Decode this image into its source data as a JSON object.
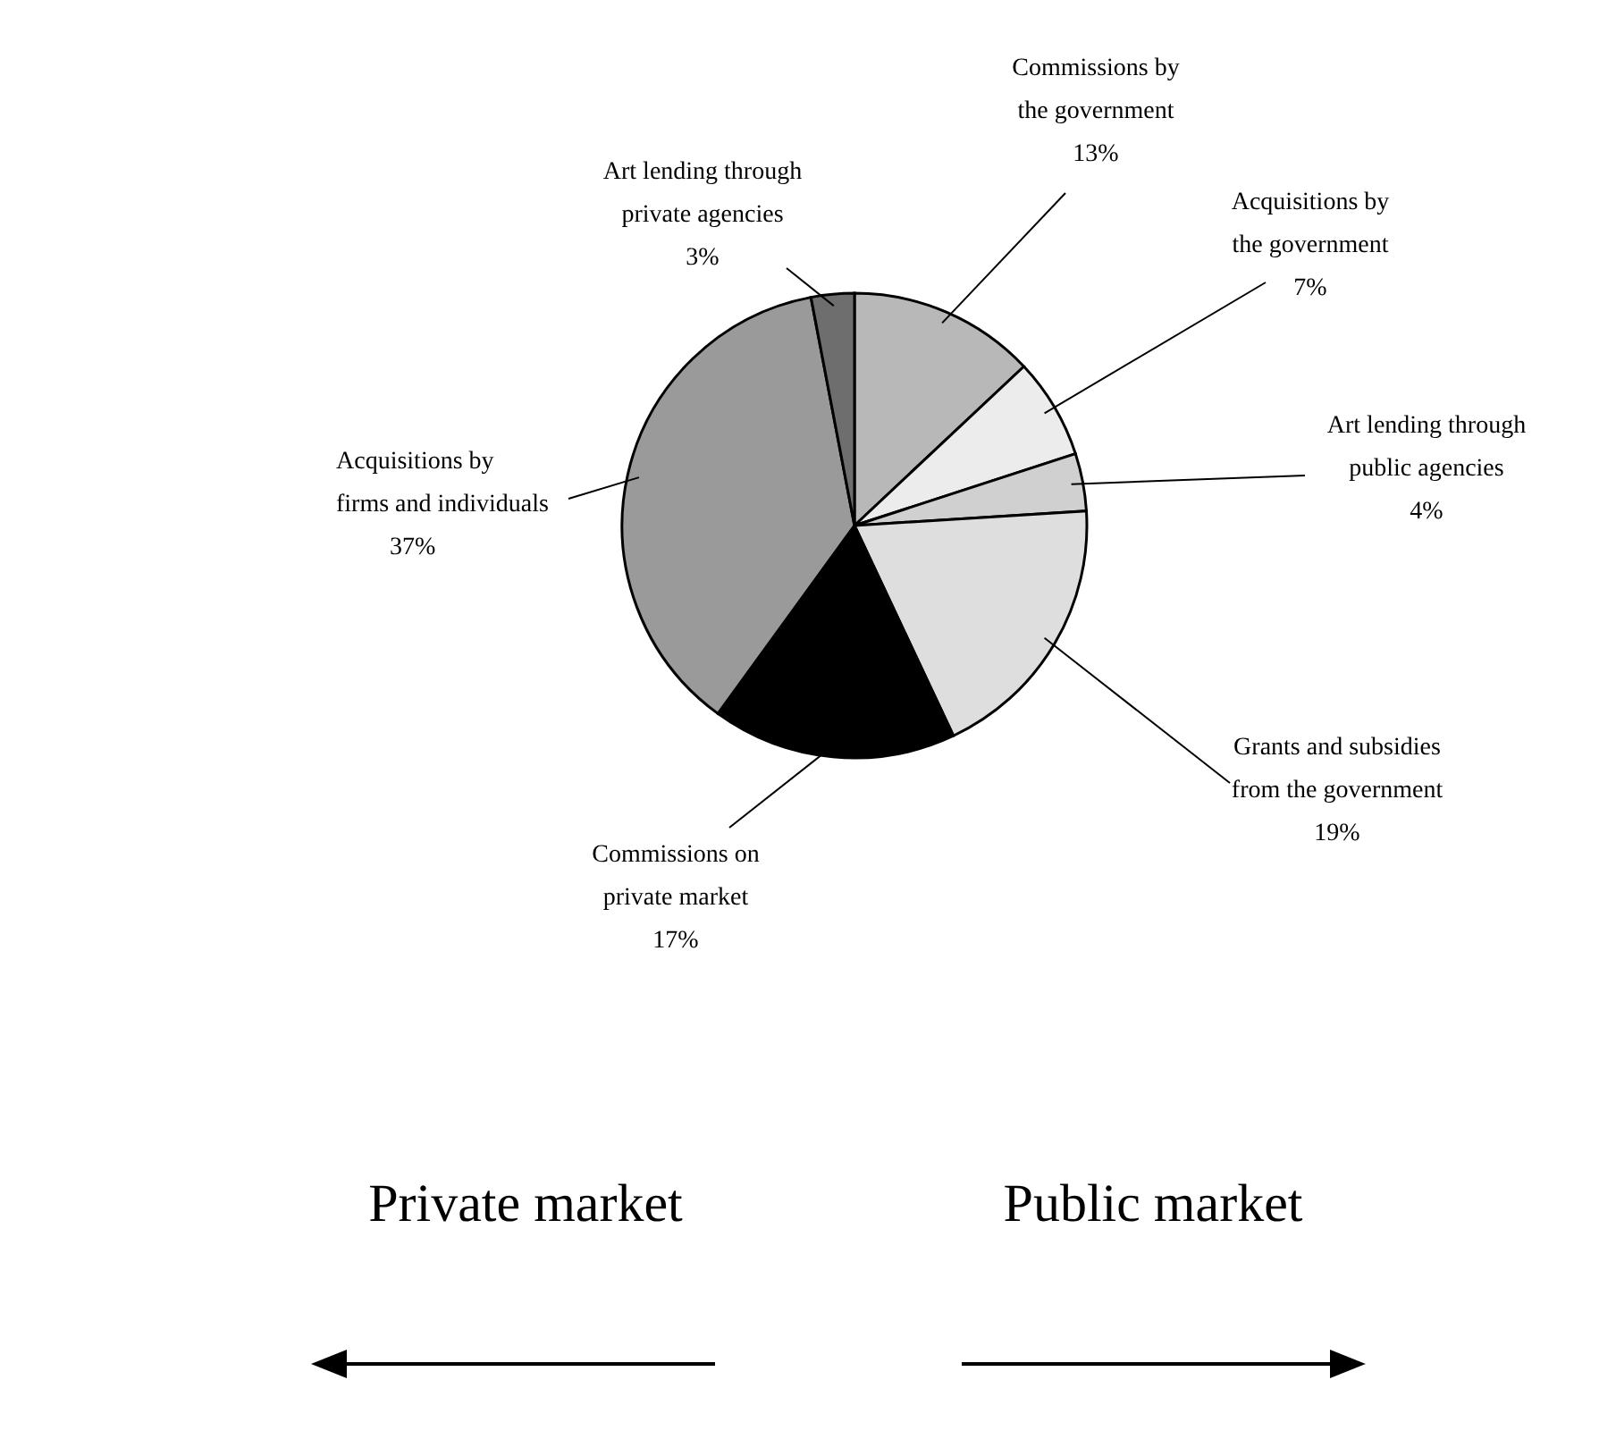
{
  "chart_data": {
    "type": "pie",
    "categories": [
      "Commissions by\nthe government",
      "Acquisitions by\nthe government",
      "Art lending through\npublic agencies",
      "Grants and subsidies\nfrom the government",
      "Commissions on\nprivate market",
      "Acquisitions by\nfirms and individuals",
      "Art lending through\nprivate agencies"
    ],
    "values": [
      13,
      7,
      4,
      19,
      17,
      37,
      3
    ],
    "colors": [
      "#b8b8b8",
      "#ececec",
      "#d0d0d0",
      "#dedede",
      "#000000",
      "#9a9a9a",
      "#6e6e6e"
    ],
    "value_labels": [
      "13%",
      "7%",
      "4%",
      "19%",
      "17%",
      "37%",
      "3%"
    ],
    "annotations": [
      "Private market",
      "Public market"
    ]
  }
}
